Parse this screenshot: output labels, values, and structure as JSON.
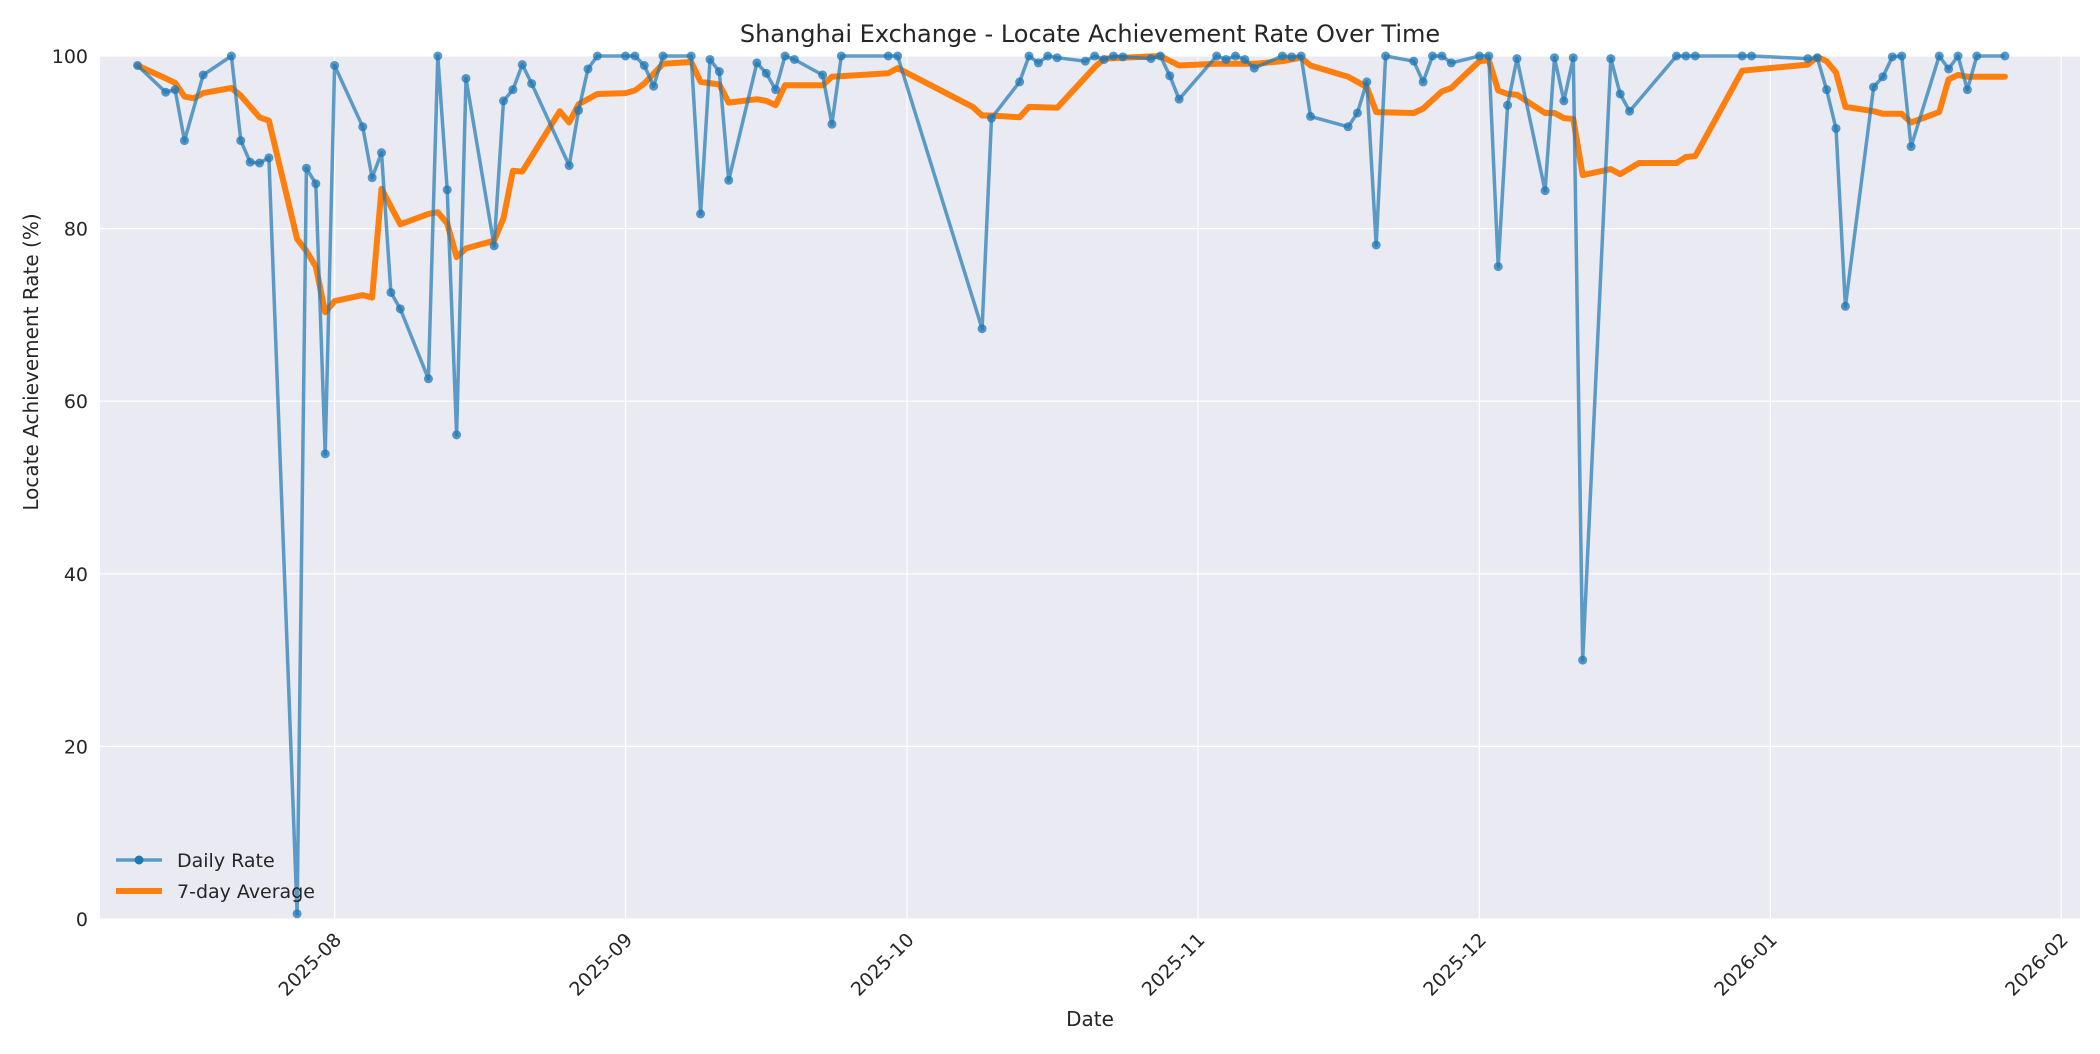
{
  "chart_data": {
    "type": "line",
    "title": "Shanghai Exchange - Locate Achievement Rate Over Time",
    "xlabel": "Date",
    "ylabel": "Locate Achievement Rate (%)",
    "ylim": [
      0,
      100
    ],
    "xlim": [
      "2025-07-07",
      "2026-02-03"
    ],
    "yticks": [
      0,
      20,
      40,
      60,
      80,
      100
    ],
    "xticks": [
      "2025-08",
      "2025-09",
      "2025-10",
      "2025-11",
      "2025-12",
      "2026-01",
      "2026-02"
    ],
    "grid": true,
    "legend_position": "lower left",
    "colors": {
      "daily": "#1f77b4",
      "average": "#ff7f0e",
      "background": "#eaeaf2",
      "grid": "#ffffff"
    },
    "series": [
      {
        "name": "Daily Rate",
        "style": "line-with-markers",
        "points": [
          [
            "2025-07-11",
            98.9
          ],
          [
            "2025-07-14",
            95.8
          ],
          [
            "2025-07-15",
            96.1
          ],
          [
            "2025-07-16",
            90.2
          ],
          [
            "2025-07-18",
            97.8
          ],
          [
            "2025-07-21",
            100.0
          ],
          [
            "2025-07-22",
            90.2
          ],
          [
            "2025-07-23",
            87.7
          ],
          [
            "2025-07-24",
            87.6
          ],
          [
            "2025-07-25",
            88.2
          ],
          [
            "2025-07-28",
            0.6
          ],
          [
            "2025-07-29",
            87.0
          ],
          [
            "2025-07-30",
            85.2
          ],
          [
            "2025-07-31",
            53.9
          ],
          [
            "2025-08-01",
            98.9
          ],
          [
            "2025-08-04",
            91.8
          ],
          [
            "2025-08-05",
            85.9
          ],
          [
            "2025-08-06",
            88.8
          ],
          [
            "2025-08-07",
            72.6
          ],
          [
            "2025-08-08",
            70.7
          ],
          [
            "2025-08-11",
            62.6
          ],
          [
            "2025-08-12",
            100.0
          ],
          [
            "2025-08-13",
            84.5
          ],
          [
            "2025-08-14",
            56.1
          ],
          [
            "2025-08-15",
            97.4
          ],
          [
            "2025-08-18",
            78.0
          ],
          [
            "2025-08-19",
            94.8
          ],
          [
            "2025-08-20",
            96.1
          ],
          [
            "2025-08-21",
            99.0
          ],
          [
            "2025-08-22",
            96.8
          ],
          [
            "2025-08-26",
            87.3
          ],
          [
            "2025-08-27",
            93.7
          ],
          [
            "2025-08-28",
            98.5
          ],
          [
            "2025-08-29",
            100.0
          ],
          [
            "2025-09-01",
            100.0
          ],
          [
            "2025-09-02",
            100.0
          ],
          [
            "2025-09-03",
            98.9
          ],
          [
            "2025-09-04",
            96.5
          ],
          [
            "2025-09-05",
            100.0
          ],
          [
            "2025-09-08",
            100.0
          ],
          [
            "2025-09-09",
            81.7
          ],
          [
            "2025-09-10",
            99.6
          ],
          [
            "2025-09-11",
            98.2
          ],
          [
            "2025-09-12",
            85.6
          ],
          [
            "2025-09-15",
            99.2
          ],
          [
            "2025-09-16",
            98.0
          ],
          [
            "2025-09-17",
            96.1
          ],
          [
            "2025-09-18",
            100.0
          ],
          [
            "2025-09-19",
            99.6
          ],
          [
            "2025-09-22",
            97.8
          ],
          [
            "2025-09-23",
            92.1
          ],
          [
            "2025-09-24",
            100.0
          ],
          [
            "2025-09-29",
            100.0
          ],
          [
            "2025-09-30",
            100.0
          ],
          [
            "2025-10-09",
            68.4
          ],
          [
            "2025-10-10",
            92.8
          ],
          [
            "2025-10-13",
            97.0
          ],
          [
            "2025-10-14",
            100.0
          ],
          [
            "2025-10-15",
            99.2
          ],
          [
            "2025-10-16",
            100.0
          ],
          [
            "2025-10-17",
            99.8
          ],
          [
            "2025-10-20",
            99.4
          ],
          [
            "2025-10-21",
            100.0
          ],
          [
            "2025-10-22",
            99.6
          ],
          [
            "2025-10-23",
            100.0
          ],
          [
            "2025-10-24",
            99.9
          ],
          [
            "2025-10-27",
            99.7
          ],
          [
            "2025-10-28",
            100.0
          ],
          [
            "2025-10-29",
            97.7
          ],
          [
            "2025-10-30",
            95.0
          ],
          [
            "2025-11-03",
            100.0
          ],
          [
            "2025-11-04",
            99.6
          ],
          [
            "2025-11-05",
            100.0
          ],
          [
            "2025-11-06",
            99.6
          ],
          [
            "2025-11-07",
            98.6
          ],
          [
            "2025-11-10",
            100.0
          ],
          [
            "2025-11-11",
            99.9
          ],
          [
            "2025-11-12",
            100.0
          ],
          [
            "2025-11-13",
            93.0
          ],
          [
            "2025-11-17",
            91.8
          ],
          [
            "2025-11-18",
            93.4
          ],
          [
            "2025-11-19",
            97.0
          ],
          [
            "2025-11-20",
            78.1
          ],
          [
            "2025-11-21",
            100.0
          ],
          [
            "2025-11-24",
            99.4
          ],
          [
            "2025-11-25",
            97.0
          ],
          [
            "2025-11-26",
            100.0
          ],
          [
            "2025-11-27",
            100.0
          ],
          [
            "2025-11-28",
            99.2
          ],
          [
            "2025-12-01",
            100.0
          ],
          [
            "2025-12-02",
            100.0
          ],
          [
            "2025-12-03",
            75.6
          ],
          [
            "2025-12-04",
            94.3
          ],
          [
            "2025-12-05",
            99.7
          ],
          [
            "2025-12-08",
            84.4
          ],
          [
            "2025-12-09",
            99.8
          ],
          [
            "2025-12-10",
            94.8
          ],
          [
            "2025-12-11",
            99.8
          ],
          [
            "2025-12-12",
            30.0
          ],
          [
            "2025-12-15",
            99.7
          ],
          [
            "2025-12-16",
            95.6
          ],
          [
            "2025-12-17",
            93.6
          ],
          [
            "2025-12-22",
            100.0
          ],
          [
            "2025-12-23",
            100.0
          ],
          [
            "2025-12-24",
            100.0
          ],
          [
            "2025-12-29",
            100.0
          ],
          [
            "2025-12-30",
            100.0
          ],
          [
            "2026-01-05",
            99.7
          ],
          [
            "2026-01-06",
            99.8
          ],
          [
            "2026-01-07",
            96.1
          ],
          [
            "2026-01-08",
            91.6
          ],
          [
            "2026-01-09",
            71.0
          ],
          [
            "2026-01-12",
            96.4
          ],
          [
            "2026-01-13",
            97.6
          ],
          [
            "2026-01-14",
            99.9
          ],
          [
            "2026-01-15",
            100.0
          ],
          [
            "2026-01-16",
            89.5
          ],
          [
            "2026-01-19",
            100.0
          ],
          [
            "2026-01-20",
            98.5
          ],
          [
            "2026-01-21",
            100.0
          ],
          [
            "2026-01-22",
            96.1
          ],
          [
            "2026-01-23",
            100.0
          ],
          [
            "2026-01-26",
            100.0
          ]
        ]
      },
      {
        "name": "7-day Average",
        "style": "thick-line",
        "points": [
          [
            "2025-07-11",
            98.9
          ],
          [
            "2025-07-14",
            97.4
          ],
          [
            "2025-07-15",
            96.9
          ],
          [
            "2025-07-16",
            95.3
          ],
          [
            "2025-07-17",
            95.1
          ],
          [
            "2025-07-18",
            95.7
          ],
          [
            "2025-07-21",
            96.3
          ],
          [
            "2025-07-22",
            95.4
          ],
          [
            "2025-07-24",
            92.9
          ],
          [
            "2025-07-25",
            92.5
          ],
          [
            "2025-07-28",
            78.8
          ],
          [
            "2025-07-29",
            77.4
          ],
          [
            "2025-07-30",
            75.6
          ],
          [
            "2025-07-31",
            70.3
          ],
          [
            "2025-08-01",
            71.6
          ],
          [
            "2025-08-04",
            72.3
          ],
          [
            "2025-08-05",
            72.0
          ],
          [
            "2025-08-06",
            84.6
          ],
          [
            "2025-08-08",
            80.5
          ],
          [
            "2025-08-11",
            81.7
          ],
          [
            "2025-08-12",
            81.9
          ],
          [
            "2025-08-13",
            80.6
          ],
          [
            "2025-08-14",
            76.7
          ],
          [
            "2025-08-15",
            77.7
          ],
          [
            "2025-08-18",
            78.6
          ],
          [
            "2025-08-19",
            81.2
          ],
          [
            "2025-08-20",
            86.7
          ],
          [
            "2025-08-21",
            86.6
          ],
          [
            "2025-08-25",
            93.6
          ],
          [
            "2025-08-26",
            92.3
          ],
          [
            "2025-08-27",
            94.4
          ],
          [
            "2025-08-29",
            95.6
          ],
          [
            "2025-09-01",
            95.7
          ],
          [
            "2025-09-02",
            96.0
          ],
          [
            "2025-09-03",
            96.8
          ],
          [
            "2025-09-05",
            99.1
          ],
          [
            "2025-09-08",
            99.3
          ],
          [
            "2025-09-09",
            97.0
          ],
          [
            "2025-09-11",
            96.7
          ],
          [
            "2025-09-12",
            94.6
          ],
          [
            "2025-09-15",
            95.0
          ],
          [
            "2025-09-16",
            94.8
          ],
          [
            "2025-09-17",
            94.3
          ],
          [
            "2025-09-18",
            96.6
          ],
          [
            "2025-09-22",
            96.6
          ],
          [
            "2025-09-23",
            97.6
          ],
          [
            "2025-09-29",
            98.0
          ],
          [
            "2025-09-30",
            98.6
          ],
          [
            "2025-10-08",
            94.1
          ],
          [
            "2025-10-09",
            93.1
          ],
          [
            "2025-10-10",
            93.1
          ],
          [
            "2025-10-13",
            92.9
          ],
          [
            "2025-10-14",
            94.1
          ],
          [
            "2025-10-17",
            94.0
          ],
          [
            "2025-10-21",
            98.7
          ],
          [
            "2025-10-22",
            99.7
          ],
          [
            "2025-10-28",
            100.0
          ],
          [
            "2025-10-30",
            98.9
          ],
          [
            "2025-11-03",
            99.1
          ],
          [
            "2025-11-07",
            99.1
          ],
          [
            "2025-11-10",
            99.4
          ],
          [
            "2025-11-12",
            99.8
          ],
          [
            "2025-11-13",
            98.9
          ],
          [
            "2025-11-17",
            97.6
          ],
          [
            "2025-11-19",
            96.4
          ],
          [
            "2025-11-20",
            93.5
          ],
          [
            "2025-11-24",
            93.4
          ],
          [
            "2025-11-25",
            93.9
          ],
          [
            "2025-11-27",
            95.9
          ],
          [
            "2025-11-28",
            96.3
          ],
          [
            "2025-12-01",
            99.4
          ],
          [
            "2025-12-02",
            99.5
          ],
          [
            "2025-12-03",
            96.0
          ],
          [
            "2025-12-04",
            95.6
          ],
          [
            "2025-12-05",
            95.5
          ],
          [
            "2025-12-08",
            93.4
          ],
          [
            "2025-12-09",
            93.4
          ],
          [
            "2025-12-10",
            92.8
          ],
          [
            "2025-12-11",
            92.7
          ],
          [
            "2025-12-12",
            86.2
          ],
          [
            "2025-12-15",
            86.9
          ],
          [
            "2025-12-16",
            86.3
          ],
          [
            "2025-12-18",
            87.6
          ],
          [
            "2025-12-22",
            87.6
          ],
          [
            "2025-12-23",
            88.3
          ],
          [
            "2025-12-24",
            88.4
          ],
          [
            "2025-12-29",
            98.3
          ],
          [
            "2025-12-30",
            98.4
          ],
          [
            "2026-01-05",
            99.0
          ],
          [
            "2026-01-06",
            99.9
          ],
          [
            "2026-01-07",
            99.4
          ],
          [
            "2026-01-08",
            98.1
          ],
          [
            "2026-01-09",
            94.1
          ],
          [
            "2026-01-12",
            93.6
          ],
          [
            "2026-01-13",
            93.3
          ],
          [
            "2026-01-15",
            93.3
          ],
          [
            "2026-01-16",
            92.3
          ],
          [
            "2026-01-19",
            93.5
          ],
          [
            "2026-01-20",
            97.3
          ],
          [
            "2026-01-21",
            97.8
          ],
          [
            "2026-01-22",
            97.6
          ],
          [
            "2026-01-26",
            97.6
          ]
        ]
      }
    ]
  },
  "legend": {
    "items": [
      {
        "label": "Daily Rate",
        "color": "#1f77b4"
      },
      {
        "label": "7-day Average",
        "color": "#ff7f0e"
      }
    ]
  }
}
